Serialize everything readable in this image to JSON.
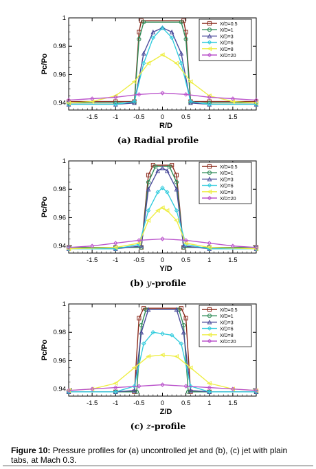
{
  "caption": {
    "label": "Figure 10:",
    "text": "Pressure profiles for (a) uncontrolled jet and (b), (c) jet with plain tabs, at Mach 0.3."
  },
  "colors": {
    "X/D=0.5": "#8b2b1d",
    "X/D=1": "#2e8b57",
    "X/D=3": "#4a4a9a",
    "X/D=6": "#33ccdd",
    "X/D=8": "#eeee44",
    "X/D=20": "#bb55cc"
  },
  "chart_data": [
    {
      "type": "line",
      "xlabel": "R/D",
      "ylabel": "Pc/Po",
      "subcaption_label": "(a)",
      "subcaption_var": "Radial",
      "subcaption_rest": "profile",
      "xlim": [
        -2.0,
        2.0
      ],
      "ylim": [
        0.935,
        1.0
      ],
      "xticks": [
        "-1.5",
        "-1",
        "-0.5",
        "0",
        "0.5",
        "1",
        "1.5"
      ],
      "yticks": [
        "0.94",
        "0.96",
        "0.98",
        "1"
      ],
      "legend": "top-right",
      "series": [
        {
          "name": "X/D=0.5",
          "marker": "square",
          "x": [
            -2.0,
            -1.0,
            -0.6,
            -0.5,
            -0.45,
            0.45,
            0.5,
            0.6,
            1.0,
            2.0
          ],
          "y": [
            0.941,
            0.941,
            0.941,
            0.99,
            0.998,
            0.998,
            0.99,
            0.941,
            0.941,
            0.941
          ]
        },
        {
          "name": "X/D=1",
          "marker": "circle",
          "x": [
            -2.0,
            -1.0,
            -0.6,
            -0.5,
            -0.4,
            0.4,
            0.5,
            0.6,
            1.0,
            2.0
          ],
          "y": [
            0.94,
            0.94,
            0.94,
            0.985,
            0.997,
            0.997,
            0.985,
            0.94,
            0.94,
            0.94
          ]
        },
        {
          "name": "X/D=3",
          "marker": "triangle",
          "x": [
            -2.0,
            -1.0,
            -0.6,
            -0.4,
            -0.2,
            0.0,
            0.2,
            0.4,
            0.6,
            1.0,
            2.0
          ],
          "y": [
            0.939,
            0.939,
            0.94,
            0.975,
            0.99,
            0.993,
            0.99,
            0.975,
            0.94,
            0.939,
            0.939
          ]
        },
        {
          "name": "X/D=6",
          "marker": "diamond",
          "x": [
            -2.0,
            -1.0,
            -0.6,
            -0.4,
            -0.2,
            0.0,
            0.2,
            0.4,
            0.6,
            1.0,
            2.0
          ],
          "y": [
            0.939,
            0.939,
            0.941,
            0.968,
            0.986,
            0.993,
            0.986,
            0.968,
            0.941,
            0.939,
            0.939
          ]
        },
        {
          "name": "X/D=8",
          "marker": "triangle-left",
          "x": [
            -2.0,
            -1.5,
            -1.0,
            -0.6,
            -0.3,
            0.0,
            0.3,
            0.6,
            1.0,
            1.5,
            2.0
          ],
          "y": [
            0.94,
            0.941,
            0.945,
            0.955,
            0.968,
            0.974,
            0.968,
            0.955,
            0.945,
            0.941,
            0.94
          ]
        },
        {
          "name": "X/D=20",
          "marker": "diamond",
          "x": [
            -2.0,
            -1.5,
            -1.0,
            -0.5,
            0.0,
            0.5,
            1.0,
            1.5,
            2.0
          ],
          "y": [
            0.942,
            0.943,
            0.944,
            0.946,
            0.947,
            0.946,
            0.944,
            0.943,
            0.942
          ]
        }
      ]
    },
    {
      "type": "line",
      "xlabel": "Y/D",
      "ylabel": "Pc/Po",
      "subcaption_label": "(b)",
      "subcaption_var": "y",
      "subcaption_rest": "-profile",
      "xlim": [
        -2.0,
        2.0
      ],
      "ylim": [
        0.935,
        1.0
      ],
      "xticks": [
        "-1.5",
        "-1",
        "-0.5",
        "0",
        "0.5",
        "1",
        "1.5"
      ],
      "yticks": [
        "0.94",
        "0.96",
        "0.98",
        "1"
      ],
      "legend": "top-right",
      "series": [
        {
          "name": "X/D=0.5",
          "marker": "square",
          "x": [
            -2.0,
            -1.0,
            -0.45,
            -0.3,
            -0.2,
            0.2,
            0.3,
            0.45,
            1.0,
            2.0
          ],
          "y": [
            0.939,
            0.939,
            0.939,
            0.99,
            0.997,
            0.997,
            0.99,
            0.939,
            0.939,
            0.939
          ]
        },
        {
          "name": "X/D=1",
          "marker": "circle",
          "x": [
            -2.0,
            -1.0,
            -0.45,
            -0.3,
            -0.15,
            0.15,
            0.3,
            0.45,
            1.0,
            2.0
          ],
          "y": [
            0.939,
            0.939,
            0.939,
            0.985,
            0.996,
            0.996,
            0.985,
            0.939,
            0.939,
            0.939
          ]
        },
        {
          "name": "X/D=3",
          "marker": "triangle",
          "x": [
            -2.0,
            -1.0,
            -0.45,
            -0.3,
            -0.1,
            0.0,
            0.1,
            0.3,
            0.45,
            1.0,
            2.0
          ],
          "y": [
            0.938,
            0.938,
            0.94,
            0.98,
            0.993,
            0.995,
            0.993,
            0.98,
            0.94,
            0.938,
            0.938
          ]
        },
        {
          "name": "X/D=6",
          "marker": "diamond",
          "x": [
            -2.0,
            -1.0,
            -0.5,
            -0.3,
            -0.1,
            0.0,
            0.1,
            0.3,
            0.5,
            1.0,
            2.0
          ],
          "y": [
            0.938,
            0.938,
            0.941,
            0.965,
            0.978,
            0.981,
            0.978,
            0.965,
            0.941,
            0.938,
            0.938
          ]
        },
        {
          "name": "X/D=8",
          "marker": "triangle-left",
          "x": [
            -2.0,
            -1.0,
            -0.5,
            -0.3,
            -0.1,
            0.0,
            0.1,
            0.3,
            0.5,
            1.0,
            2.0
          ],
          "y": [
            0.938,
            0.939,
            0.942,
            0.958,
            0.965,
            0.967,
            0.965,
            0.958,
            0.942,
            0.939,
            0.938
          ]
        },
        {
          "name": "X/D=20",
          "marker": "diamond",
          "x": [
            -2.0,
            -1.5,
            -1.0,
            -0.5,
            0.0,
            0.5,
            1.0,
            1.5,
            2.0
          ],
          "y": [
            0.939,
            0.94,
            0.942,
            0.944,
            0.945,
            0.944,
            0.942,
            0.94,
            0.939
          ]
        }
      ]
    },
    {
      "type": "line",
      "xlabel": "Z/D",
      "ylabel": "Pc/Po",
      "subcaption_label": "(c)",
      "subcaption_var": "z",
      "subcaption_rest": "-profile",
      "xlim": [
        -2.0,
        2.0
      ],
      "ylim": [
        0.935,
        1.0
      ],
      "xticks": [
        "-1.5",
        "-1",
        "-0.5",
        "0",
        "0.5",
        "1",
        "1.5"
      ],
      "yticks": [
        "0.94",
        "0.96",
        "0.98",
        "1"
      ],
      "legend": "top-right",
      "series": [
        {
          "name": "X/D=0.5",
          "marker": "square",
          "x": [
            -2.0,
            -1.0,
            -0.6,
            -0.5,
            -0.4,
            0.4,
            0.5,
            0.6,
            1.0,
            2.0
          ],
          "y": [
            0.938,
            0.938,
            0.938,
            0.99,
            0.997,
            0.997,
            0.99,
            0.938,
            0.938,
            0.938
          ]
        },
        {
          "name": "X/D=1",
          "marker": "circle",
          "x": [
            -2.0,
            -1.0,
            -0.55,
            -0.45,
            -0.35,
            0.35,
            0.45,
            0.55,
            1.0,
            2.0
          ],
          "y": [
            0.938,
            0.938,
            0.938,
            0.985,
            0.996,
            0.996,
            0.985,
            0.938,
            0.938,
            0.938
          ]
        },
        {
          "name": "X/D=3",
          "marker": "triangle",
          "x": [
            -2.0,
            -1.0,
            -0.6,
            -0.45,
            -0.3,
            0.3,
            0.45,
            0.6,
            1.0,
            2.0
          ],
          "y": [
            0.938,
            0.938,
            0.939,
            0.98,
            0.996,
            0.996,
            0.98,
            0.939,
            0.938,
            0.938
          ]
        },
        {
          "name": "X/D=6",
          "marker": "diamond",
          "x": [
            -2.0,
            -1.0,
            -0.6,
            -0.4,
            -0.2,
            0.0,
            0.2,
            0.4,
            0.6,
            1.0,
            2.0
          ],
          "y": [
            0.938,
            0.938,
            0.942,
            0.972,
            0.98,
            0.979,
            0.978,
            0.972,
            0.942,
            0.938,
            0.938
          ]
        },
        {
          "name": "X/D=8",
          "marker": "triangle-left",
          "x": [
            -2.0,
            -1.5,
            -1.0,
            -0.6,
            -0.3,
            0.0,
            0.3,
            0.6,
            1.0,
            1.5,
            2.0
          ],
          "y": [
            0.939,
            0.94,
            0.944,
            0.955,
            0.963,
            0.964,
            0.963,
            0.955,
            0.944,
            0.94,
            0.939
          ]
        },
        {
          "name": "X/D=20",
          "marker": "diamond",
          "x": [
            -2.0,
            -1.5,
            -1.0,
            -0.5,
            0.0,
            0.5,
            1.0,
            1.5,
            2.0
          ],
          "y": [
            0.939,
            0.94,
            0.941,
            0.942,
            0.943,
            0.942,
            0.941,
            0.94,
            0.939
          ]
        }
      ]
    }
  ]
}
